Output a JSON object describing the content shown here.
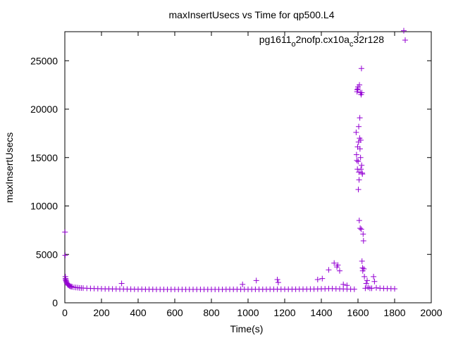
{
  "chart_data": {
    "type": "scatter",
    "title": "maxInsertUsecs vs Time for qp500.L4",
    "xlabel": "Time(s)",
    "ylabel": "maxInsertUsecs",
    "xlim": [
      0,
      2000
    ],
    "ylim": [
      0,
      28000
    ],
    "x_ticks": [
      0,
      200,
      400,
      600,
      800,
      1000,
      1200,
      1400,
      1600,
      1800,
      2000
    ],
    "y_ticks": [
      0,
      5000,
      10000,
      15000,
      20000,
      25000
    ],
    "x_tick_labels": [
      "0",
      "200",
      "400",
      "600",
      "800",
      "1000",
      "1200",
      "1400",
      "1600",
      "1800",
      "2000"
    ],
    "y_tick_labels": [
      "0",
      "5000",
      "10000",
      "15000",
      "20000",
      "25000"
    ],
    "grid": false,
    "legend_position": "top-right",
    "marker": "plus",
    "series": [
      {
        "legend": {
          "base1": "pg1611",
          "sub1": "o",
          "base2": "2nofp.cx10a",
          "sub2": "c",
          "base3": "32r128"
        },
        "color": "#9400d3",
        "points": [
          [
            1,
            7300
          ],
          [
            2,
            4900
          ],
          [
            3,
            2700
          ],
          [
            4,
            2500
          ],
          [
            5,
            2400
          ],
          [
            6,
            2300
          ],
          [
            8,
            2200
          ],
          [
            10,
            2100
          ],
          [
            12,
            2000
          ],
          [
            15,
            1900
          ],
          [
            18,
            1850
          ],
          [
            22,
            1800
          ],
          [
            26,
            1750
          ],
          [
            30,
            1700
          ],
          [
            35,
            1680
          ],
          [
            40,
            1650
          ],
          [
            50,
            1600
          ],
          [
            60,
            1580
          ],
          [
            70,
            1560
          ],
          [
            80,
            1540
          ],
          [
            90,
            1530
          ],
          [
            100,
            1520
          ],
          [
            120,
            1500
          ],
          [
            140,
            1480
          ],
          [
            160,
            1470
          ],
          [
            180,
            1460
          ],
          [
            200,
            1450
          ],
          [
            220,
            1440
          ],
          [
            240,
            1440
          ],
          [
            260,
            1430
          ],
          [
            280,
            1430
          ],
          [
            300,
            1420
          ],
          [
            320,
            1420
          ],
          [
            340,
            1410
          ],
          [
            360,
            1410
          ],
          [
            380,
            1400
          ],
          [
            400,
            1400
          ],
          [
            420,
            1400
          ],
          [
            440,
            1390
          ],
          [
            460,
            1390
          ],
          [
            480,
            1390
          ],
          [
            500,
            1380
          ],
          [
            520,
            1380
          ],
          [
            540,
            1380
          ],
          [
            560,
            1380
          ],
          [
            580,
            1380
          ],
          [
            600,
            1380
          ],
          [
            620,
            1380
          ],
          [
            640,
            1380
          ],
          [
            660,
            1380
          ],
          [
            680,
            1380
          ],
          [
            700,
            1380
          ],
          [
            720,
            1380
          ],
          [
            740,
            1380
          ],
          [
            760,
            1380
          ],
          [
            780,
            1380
          ],
          [
            800,
            1380
          ],
          [
            820,
            1380
          ],
          [
            840,
            1380
          ],
          [
            860,
            1380
          ],
          [
            880,
            1390
          ],
          [
            900,
            1390
          ],
          [
            920,
            1390
          ],
          [
            940,
            1390
          ],
          [
            960,
            1390
          ],
          [
            980,
            1390
          ],
          [
            1000,
            1390
          ],
          [
            1020,
            1390
          ],
          [
            1040,
            1390
          ],
          [
            1060,
            1390
          ],
          [
            1080,
            1390
          ],
          [
            1100,
            1390
          ],
          [
            1120,
            1400
          ],
          [
            1140,
            1400
          ],
          [
            1160,
            1400
          ],
          [
            1180,
            1400
          ],
          [
            1200,
            1400
          ],
          [
            1220,
            1400
          ],
          [
            1240,
            1400
          ],
          [
            1260,
            1400
          ],
          [
            1280,
            1410
          ],
          [
            1300,
            1410
          ],
          [
            1320,
            1410
          ],
          [
            1340,
            1420
          ],
          [
            1360,
            1420
          ],
          [
            1380,
            1430
          ],
          [
            1400,
            1440
          ],
          [
            1420,
            1450
          ],
          [
            1440,
            1460
          ],
          [
            1460,
            1460
          ],
          [
            1480,
            1450
          ],
          [
            1500,
            1440
          ],
          [
            1520,
            1430
          ],
          [
            1540,
            1420
          ],
          [
            1560,
            1410
          ],
          [
            1580,
            1400
          ],
          [
            310,
            2000
          ],
          [
            970,
            1900
          ],
          [
            1045,
            2300
          ],
          [
            1160,
            2400
          ],
          [
            1165,
            2100
          ],
          [
            1380,
            2400
          ],
          [
            1405,
            2500
          ],
          [
            1440,
            3400
          ],
          [
            1470,
            4100
          ],
          [
            1485,
            3700
          ],
          [
            1490,
            3900
          ],
          [
            1500,
            3300
          ],
          [
            1520,
            1900
          ],
          [
            1540,
            1800
          ],
          [
            1590,
            17600
          ],
          [
            1592,
            15300
          ],
          [
            1594,
            14700
          ],
          [
            1595,
            21800
          ],
          [
            1596,
            22000
          ],
          [
            1597,
            13800
          ],
          [
            1598,
            16100
          ],
          [
            1599,
            22100
          ],
          [
            1600,
            22300
          ],
          [
            1601,
            14600
          ],
          [
            1602,
            11700
          ],
          [
            1603,
            16600
          ],
          [
            1604,
            18200
          ],
          [
            1605,
            13500
          ],
          [
            1606,
            12700
          ],
          [
            1607,
            8500
          ],
          [
            1608,
            22500
          ],
          [
            1609,
            17000
          ],
          [
            1610,
            19100
          ],
          [
            1611,
            15900
          ],
          [
            1612,
            7700
          ],
          [
            1613,
            21700
          ],
          [
            1614,
            15000
          ],
          [
            1615,
            16800
          ],
          [
            1616,
            13800
          ],
          [
            1617,
            21500
          ],
          [
            1618,
            7600
          ],
          [
            1619,
            24200
          ],
          [
            1620,
            14200
          ],
          [
            1621,
            21700
          ],
          [
            1622,
            4300
          ],
          [
            1623,
            13400
          ],
          [
            1624,
            13300
          ],
          [
            1625,
            3600
          ],
          [
            1626,
            3300
          ],
          [
            1628,
            7100
          ],
          [
            1630,
            6400
          ],
          [
            1632,
            3500
          ],
          [
            1635,
            2700
          ],
          [
            1640,
            1500
          ],
          [
            1645,
            2000
          ],
          [
            1650,
            2300
          ],
          [
            1655,
            1600
          ],
          [
            1665,
            1500
          ],
          [
            1675,
            1500
          ],
          [
            1685,
            2700
          ],
          [
            1690,
            2200
          ],
          [
            1700,
            1550
          ],
          [
            1720,
            1500
          ],
          [
            1740,
            1480
          ],
          [
            1760,
            1470
          ],
          [
            1780,
            1460
          ],
          [
            1800,
            1450
          ],
          [
            1850,
            28100
          ]
        ]
      }
    ]
  }
}
